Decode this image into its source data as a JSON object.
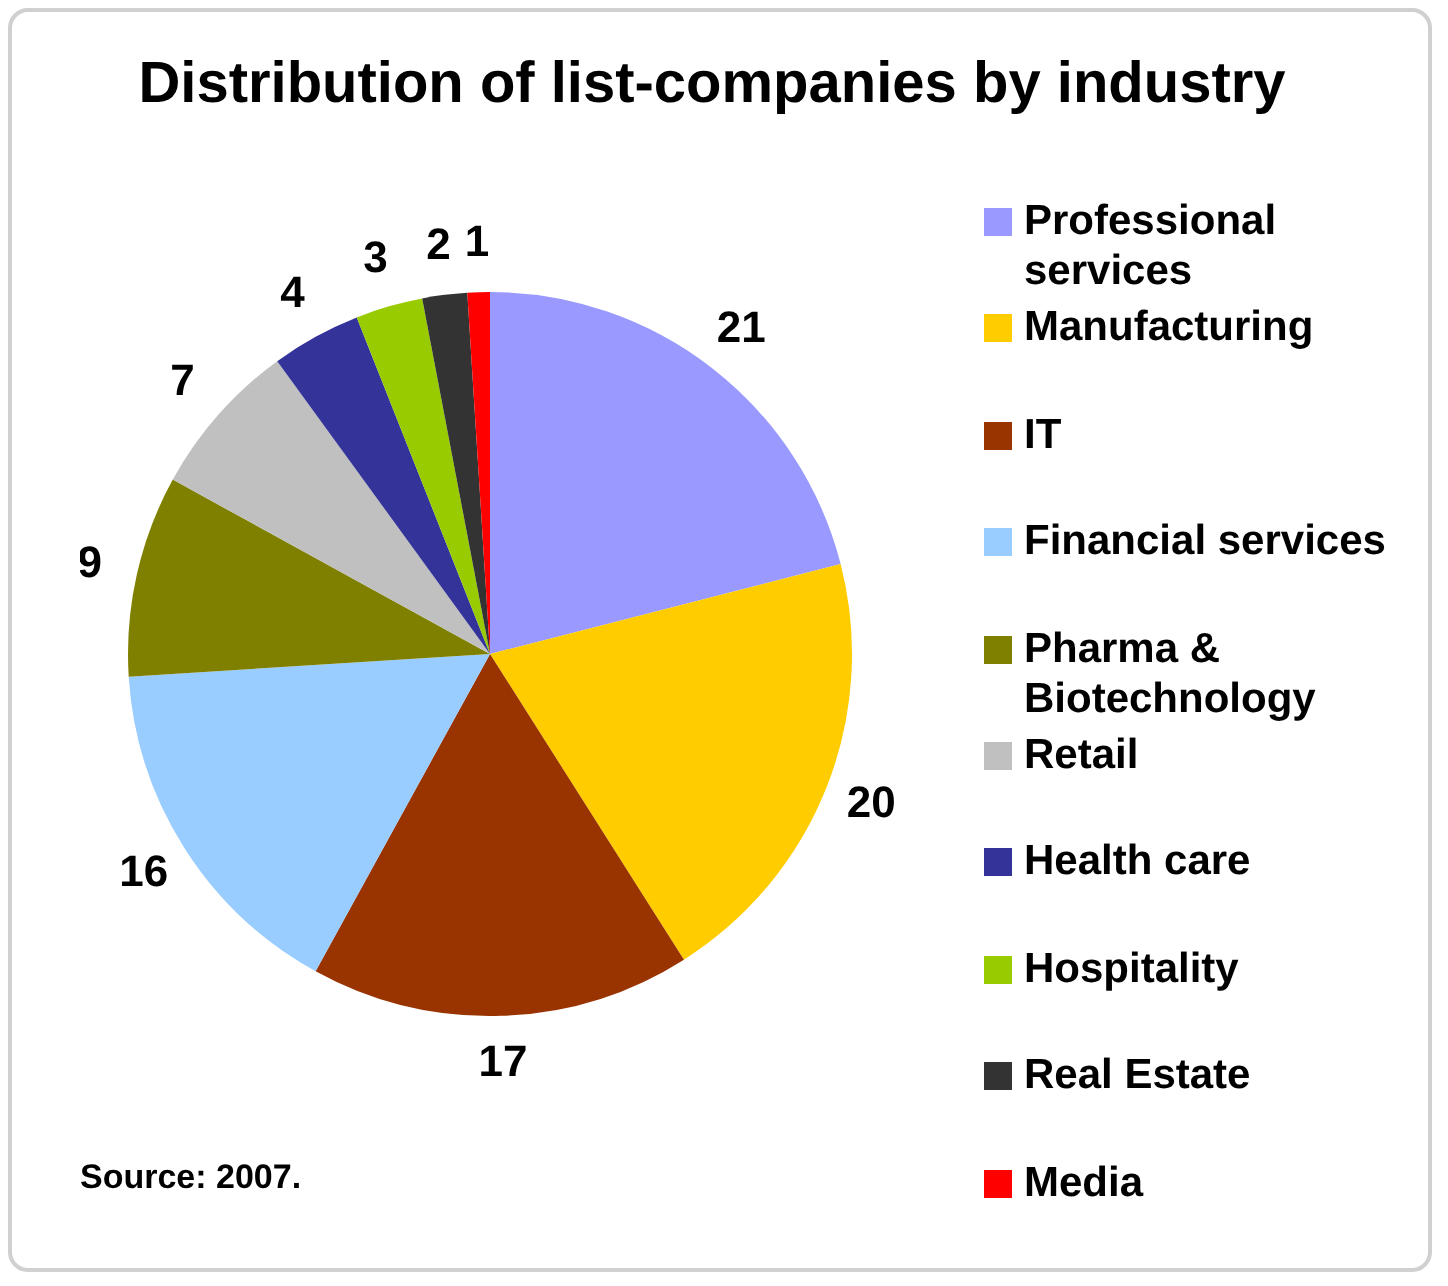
{
  "chart_data": {
    "type": "pie",
    "title": "Distribution of list-companies by industry",
    "categories": [
      "Professional services",
      "Manufacturing",
      "IT",
      "Financial services",
      "Pharma & Biotechnology",
      "Retail",
      "Health care",
      "Hospitality",
      "Real Estate",
      "Media"
    ],
    "values": [
      21,
      20,
      17,
      16,
      9,
      7,
      4,
      3,
      2,
      1
    ],
    "colors": [
      "#9999ff",
      "#ffcc00",
      "#993300",
      "#99ccff",
      "#808000",
      "#c0c0c0",
      "#333399",
      "#99cc00",
      "#333333",
      "#ff0000"
    ],
    "data_labels": true,
    "legend": "right",
    "annotations": [
      "Source: 2007."
    ]
  }
}
